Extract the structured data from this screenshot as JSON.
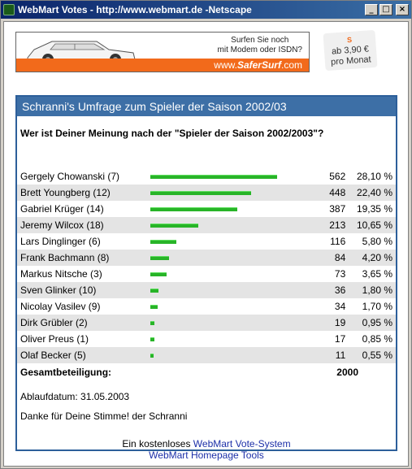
{
  "window": {
    "title": "WebMart Votes - http://www.webmart.de -Netscape",
    "min_glyph": "_",
    "max_glyph": "□",
    "close_glyph": "×"
  },
  "banner": {
    "line1": "Surfen Sie noch",
    "line2": "mit Modem oder ISDN?",
    "domain_prefix": "www.",
    "domain_brand": "SaferSurf",
    "domain_suffix": ".com",
    "price_logo": "S",
    "price_line1": "ab 3,90 €",
    "price_line2": "pro Monat"
  },
  "poll": {
    "heading": "Schranni's Umfrage zum Spieler der Saison 2002/03",
    "question": "Wer ist Deiner Meinung nach der \"Spieler der Saison 2002/2003\"?",
    "max_votes": 562,
    "rows": [
      {
        "name": "Gergely Chowanski (7)",
        "votes": "562",
        "pct": "28,10 %",
        "value": 562
      },
      {
        "name": "Brett Youngberg (12)",
        "votes": "448",
        "pct": "22,40 %",
        "value": 448
      },
      {
        "name": "Gabriel Krüger (14)",
        "votes": "387",
        "pct": "19,35 %",
        "value": 387
      },
      {
        "name": "Jeremy Wilcox (18)",
        "votes": "213",
        "pct": "10,65 %",
        "value": 213
      },
      {
        "name": "Lars Dinglinger (6)",
        "votes": "116",
        "pct": "5,80 %",
        "value": 116
      },
      {
        "name": "Frank Bachmann (8)",
        "votes": "84",
        "pct": "4,20 %",
        "value": 84
      },
      {
        "name": "Markus Nitsche (3)",
        "votes": "73",
        "pct": "3,65 %",
        "value": 73
      },
      {
        "name": "Sven Glinker (10)",
        "votes": "36",
        "pct": "1,80 %",
        "value": 36
      },
      {
        "name": "Nicolay Vasilev (9)",
        "votes": "34",
        "pct": "1,70 %",
        "value": 34
      },
      {
        "name": "Dirk Grübler (2)",
        "votes": "19",
        "pct": "0,95 %",
        "value": 19
      },
      {
        "name": "Oliver Preus (1)",
        "votes": "17",
        "pct": "0,85 %",
        "value": 17
      },
      {
        "name": "Olaf Becker (5)",
        "votes": "11",
        "pct": "0,55 %",
        "value": 11
      }
    ],
    "total_label": "Gesamtbeteiligung:",
    "total_value": "2000",
    "expiry": "Ablaufdatum: 31.05.2003",
    "thanks": "Danke für Deine Stimme! der Schranni",
    "footer_prefix": "Ein kostenloses ",
    "footer_link1": "WebMart Vote-System",
    "footer_link2": "WebMart Homepage Tools"
  },
  "colors": {
    "header_bg": "#3d6fa6",
    "bar": "#28b428",
    "link": "#1c2fa8",
    "banner_strip": "#f26a1b"
  }
}
